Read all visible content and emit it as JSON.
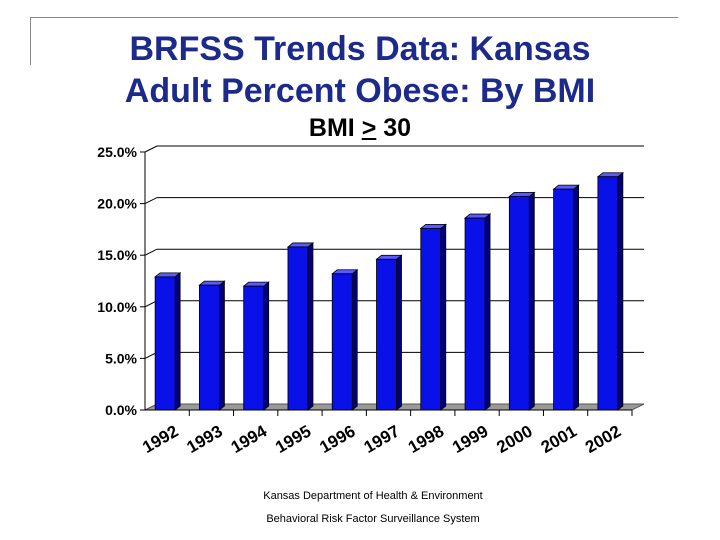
{
  "title_lines": [
    "BRFSS Trends Data: Kansas",
    "Adult Percent Obese: By BMI"
  ],
  "subtitle": {
    "prefix": "BMI ",
    "symbol": ">",
    "suffix": " 30"
  },
  "footer": {
    "line1": "Kansas Department of Health & Environment",
    "line2": "Behavioral Risk Factor Surveillance System"
  },
  "chart_data": {
    "type": "bar",
    "categories": [
      "1992",
      "1993",
      "1994",
      "1995",
      "1996",
      "1997",
      "1998",
      "1999",
      "2000",
      "2001",
      "2002"
    ],
    "values": [
      12.9,
      12.1,
      12.0,
      15.8,
      13.2,
      14.6,
      17.6,
      18.6,
      20.7,
      21.4,
      22.6
    ],
    "ylim": [
      0,
      25
    ],
    "y_ticks": [
      "0.0%",
      "5.0%",
      "10.0%",
      "15.0%",
      "20.0%",
      "25.0%"
    ],
    "grid": true,
    "bar_color": "#0a10e8"
  }
}
